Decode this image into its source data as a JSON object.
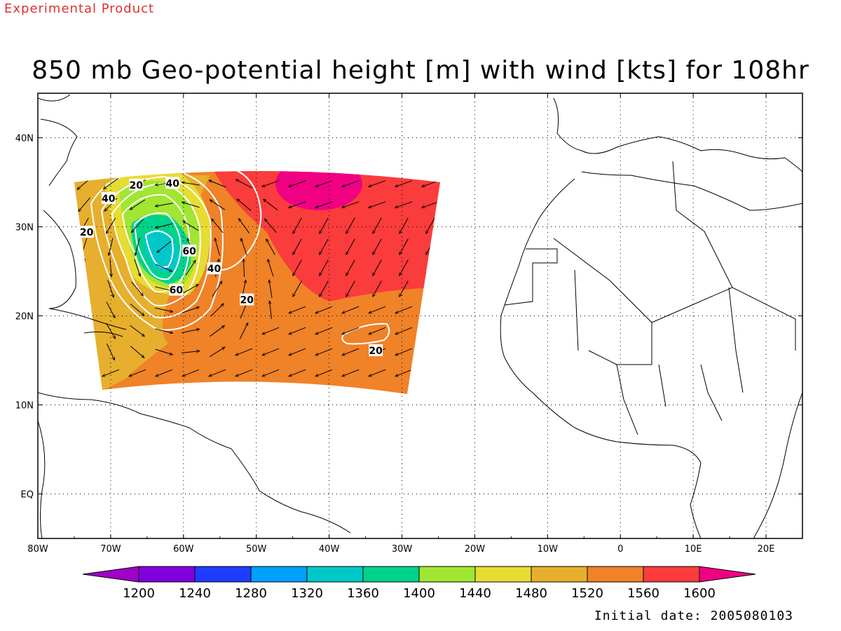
{
  "header": {
    "product_tag": "Experimental Product",
    "title": "850 mb Geo-potential height [m] with wind [kts] for 108hr"
  },
  "footer": {
    "initial_date": "Initial date: 2005080103"
  },
  "map": {
    "lon_range": [
      -80,
      25
    ],
    "lat_range": [
      -5,
      45
    ],
    "lon_ticks": [
      {
        "lon": -80,
        "label": "80W"
      },
      {
        "lon": -70,
        "label": "70W"
      },
      {
        "lon": -60,
        "label": "60W"
      },
      {
        "lon": -50,
        "label": "50W"
      },
      {
        "lon": -40,
        "label": "40W"
      },
      {
        "lon": -30,
        "label": "30W"
      },
      {
        "lon": -20,
        "label": "20W"
      },
      {
        "lon": -10,
        "label": "10W"
      },
      {
        "lon": 0,
        "label": "0"
      },
      {
        "lon": 10,
        "label": "10E"
      },
      {
        "lon": 20,
        "label": "20E"
      }
    ],
    "lat_ticks": [
      {
        "lat": 40,
        "label": "40N"
      },
      {
        "lat": 30,
        "label": "30N"
      },
      {
        "lat": 20,
        "label": "20N"
      },
      {
        "lat": 10,
        "label": "10N"
      },
      {
        "lat": 0,
        "label": "EQ"
      }
    ],
    "grid": true,
    "wind_contour_labels": [
      {
        "text": "20",
        "lon": -66.5,
        "lat": 34.7
      },
      {
        "text": "40",
        "lon": -61.5,
        "lat": 34.9
      },
      {
        "text": "40",
        "lon": -70.3,
        "lat": 33.2
      },
      {
        "text": "20",
        "lon": -73.3,
        "lat": 29.4
      },
      {
        "text": "60",
        "lon": -59.2,
        "lat": 27.3
      },
      {
        "text": "40",
        "lon": -55.8,
        "lat": 25.3
      },
      {
        "text": "60",
        "lon": -61.0,
        "lat": 22.9
      },
      {
        "text": "20",
        "lon": -51.3,
        "lat": 21.8
      },
      {
        "text": "20",
        "lon": -33.6,
        "lat": 16.1
      }
    ]
  },
  "colorbar": {
    "labels": [
      "1200",
      "1240",
      "1280",
      "1320",
      "1360",
      "1400",
      "1440",
      "1480",
      "1520",
      "1560",
      "1600"
    ],
    "colors": [
      "#a000c8",
      "#8200dc",
      "#1e3cff",
      "#00a0ff",
      "#00c8c8",
      "#00d28c",
      "#a0e632",
      "#e6dc32",
      "#e6af2d",
      "#f08228",
      "#fa3c3c",
      "#f00082"
    ]
  },
  "chart_data": {
    "type": "heatmap",
    "title": "850 mb Geo-potential height [m] with wind [kts] for 108hr",
    "variable": "Geo-potential height [m]",
    "overlay": "wind [kts]",
    "levels": [
      1200,
      1240,
      1280,
      1320,
      1360,
      1400,
      1440,
      1480,
      1520,
      1560,
      1600
    ],
    "wind_contours_kts": [
      20,
      40,
      60
    ],
    "grid": true
  }
}
